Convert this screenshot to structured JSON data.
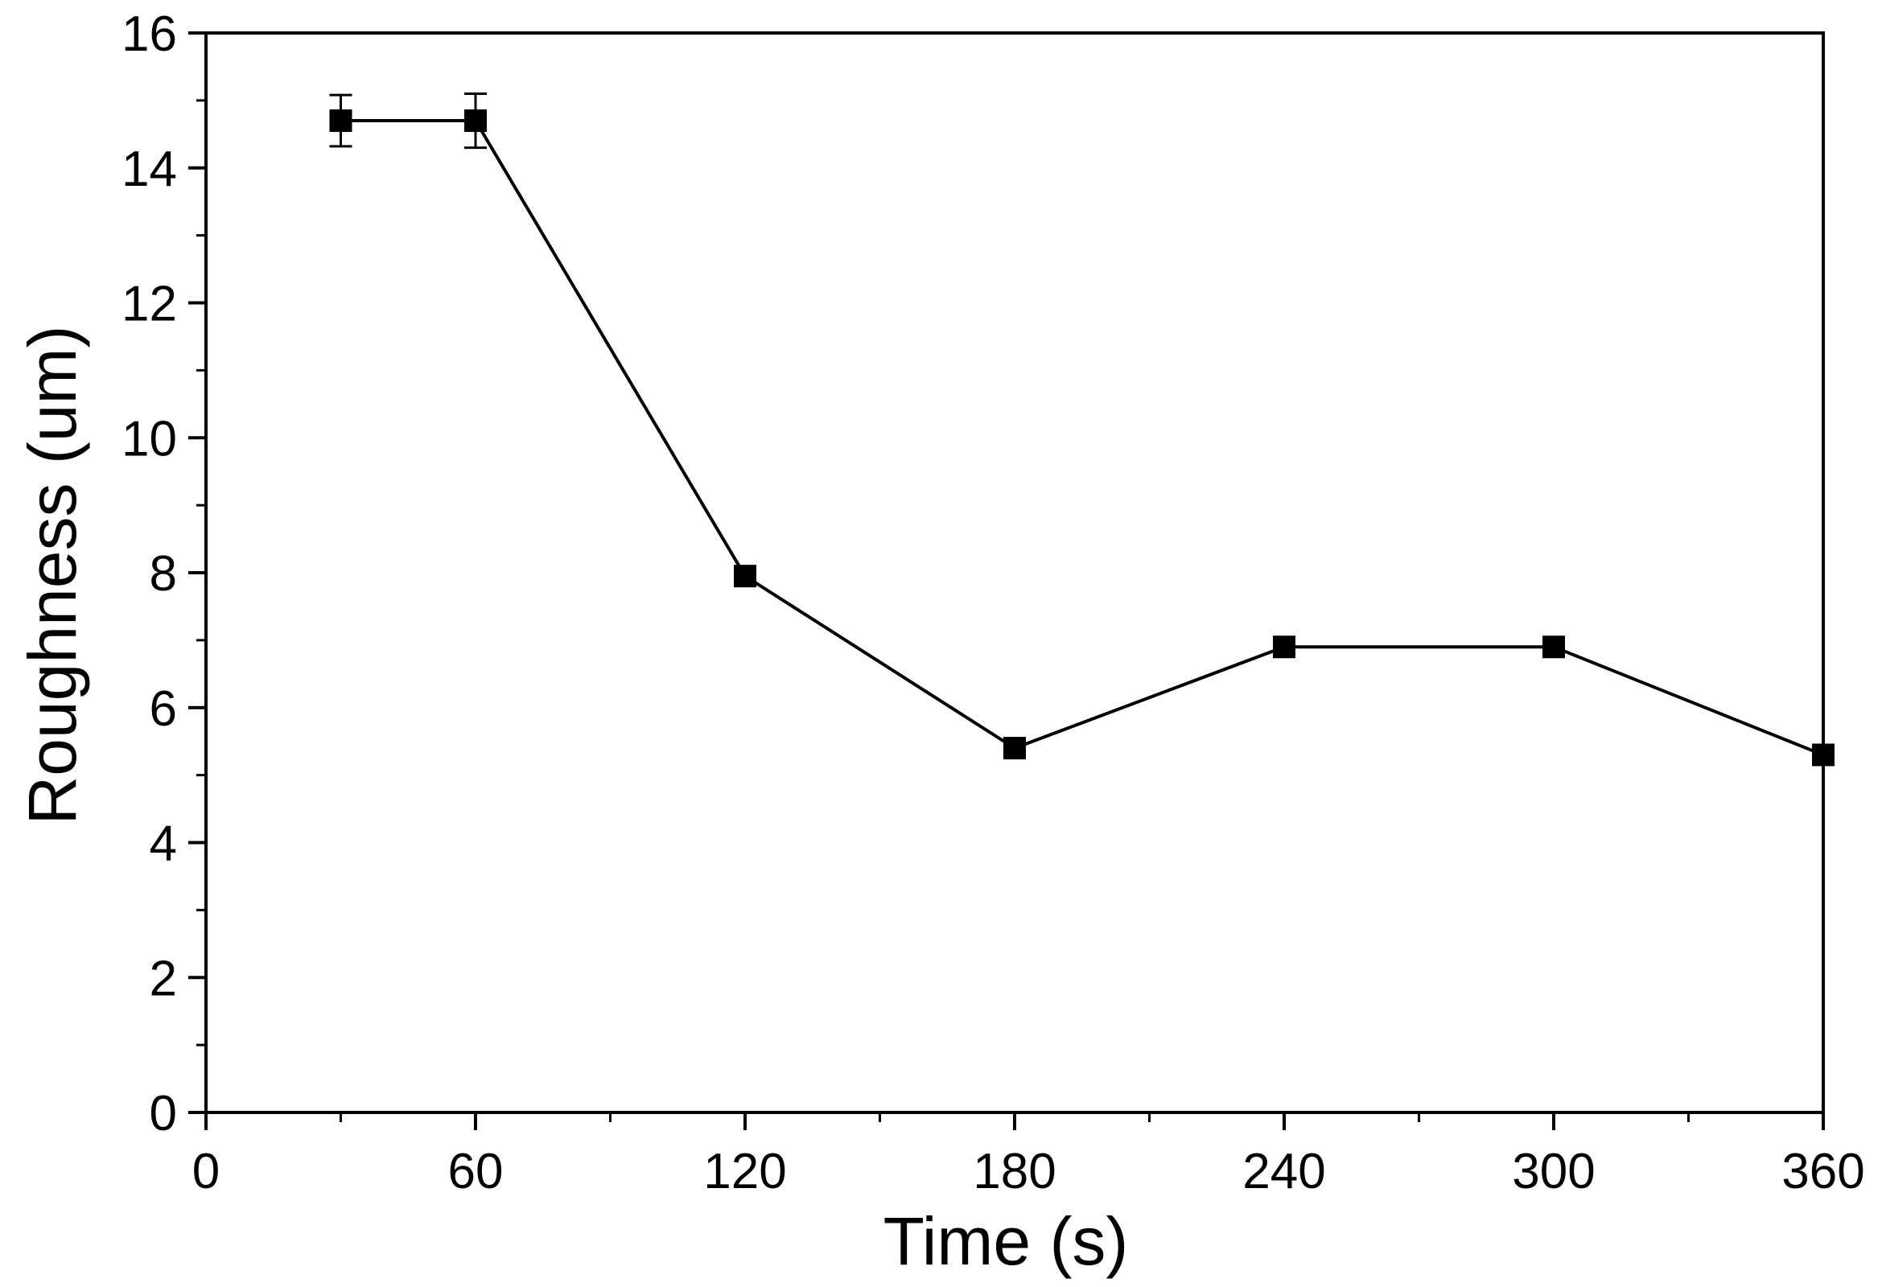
{
  "chart_data": {
    "type": "line",
    "title": "",
    "xlabel": "Time (s)",
    "ylabel": "Roughness (um)",
    "xlim": [
      0,
      360
    ],
    "ylim": [
      0,
      16
    ],
    "x_ticks": [
      0,
      60,
      120,
      180,
      240,
      300,
      360
    ],
    "x_tick_labels": [
      "0",
      "60",
      "120",
      "180",
      "240",
      "300",
      "360"
    ],
    "y_ticks": [
      0,
      2,
      4,
      6,
      8,
      10,
      12,
      14,
      16
    ],
    "y_tick_labels": [
      "0",
      "2",
      "4",
      "6",
      "8",
      "10",
      "12",
      "14",
      "16"
    ],
    "grid": false,
    "legend": "none",
    "series": [
      {
        "name": "Roughness",
        "marker": "square",
        "color": "#000000",
        "x": [
          30,
          60,
          120,
          180,
          240,
          300,
          360
        ],
        "values": [
          14.7,
          14.7,
          7.95,
          5.4,
          6.9,
          6.9,
          5.3
        ],
        "error": [
          0.38,
          0.4,
          0.12,
          0.12,
          0.12,
          0.1,
          0.1
        ]
      }
    ]
  }
}
